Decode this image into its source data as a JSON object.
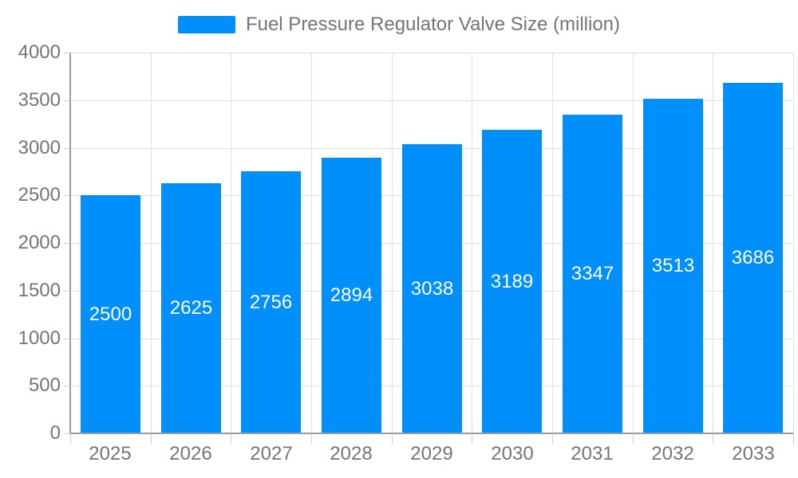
{
  "chart_data": {
    "type": "bar",
    "title": "Fuel Pressure Regulator Valve Size (million)",
    "categories": [
      "2025",
      "2026",
      "2027",
      "2028",
      "2029",
      "2030",
      "2031",
      "2032",
      "2033"
    ],
    "series": [
      {
        "name": "Fuel Pressure Regulator Valve Size (million)",
        "values": [
          2500,
          2625,
          2756,
          2894,
          3038,
          3189,
          3347,
          3513,
          3686
        ]
      }
    ],
    "values": [
      2500,
      2625,
      2756,
      2894,
      3038,
      3189,
      3347,
      3513,
      3686
    ],
    "bar_value_labels": [
      "2500",
      "2625",
      "2756",
      "2894",
      "3038",
      "3189",
      "3347",
      "3513",
      "3686"
    ],
    "xlabel": "",
    "ylabel": "",
    "ylim": [
      0,
      4000
    ],
    "yticks": [
      0,
      500,
      1000,
      1500,
      2000,
      2500,
      3000,
      3500,
      4000
    ],
    "grid": "on",
    "legend_position": "top",
    "colors": {
      "bar": "#008FFB",
      "bar_label_text": "#ffffff",
      "axis_text": "#757575",
      "grid_line": "#e0e0e0",
      "axis_line": "#9b9b9b",
      "tick_line": "#cfcfcf"
    }
  }
}
